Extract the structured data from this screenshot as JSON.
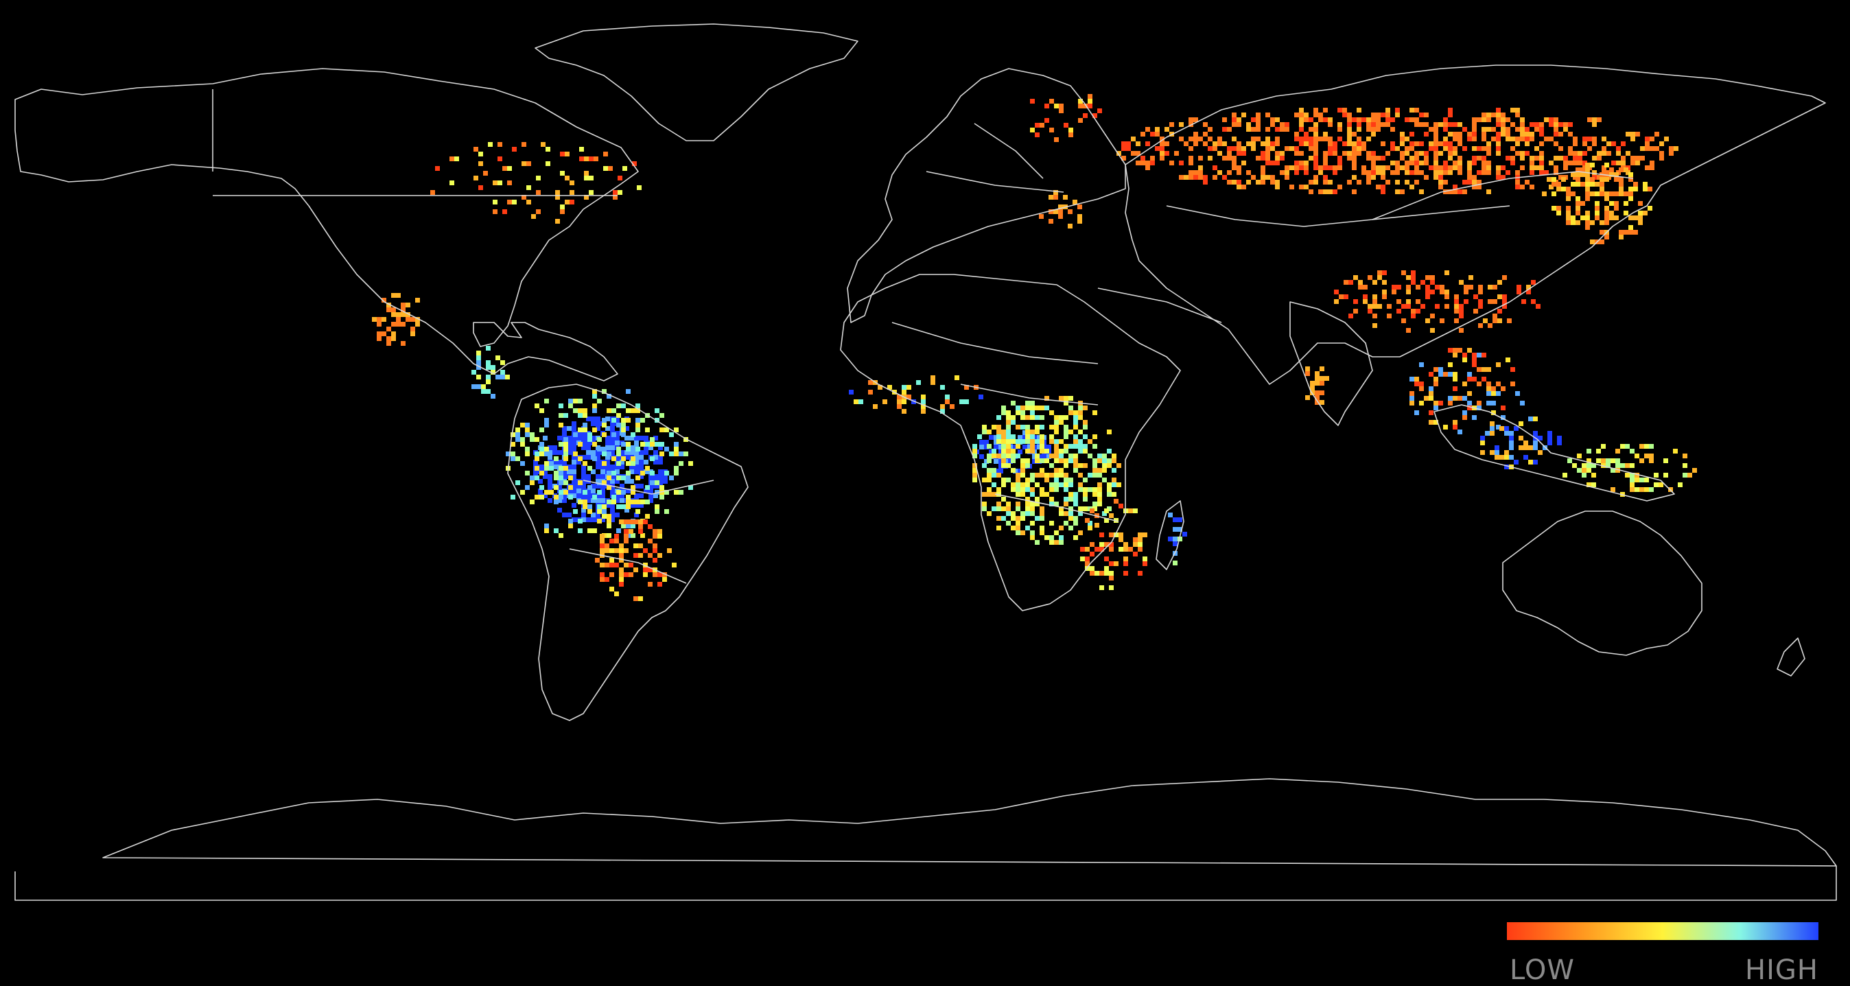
{
  "map": {
    "projection": "plate-carree",
    "background": "#000000",
    "outline_color": "#d9d9d9",
    "palette": [
      "#ff3c14",
      "#ff7a1e",
      "#ffb428",
      "#ffe632",
      "#f0ff55",
      "#b4ff8c",
      "#78f5dc",
      "#5aaaff",
      "#1e3cff"
    ]
  },
  "legend": {
    "low_label": "LOW",
    "high_label": "HIGH",
    "gradient_stops": [
      "#ff3c14",
      "#ff9a20",
      "#fff23a",
      "#86f6e4",
      "#2040ff"
    ]
  }
}
